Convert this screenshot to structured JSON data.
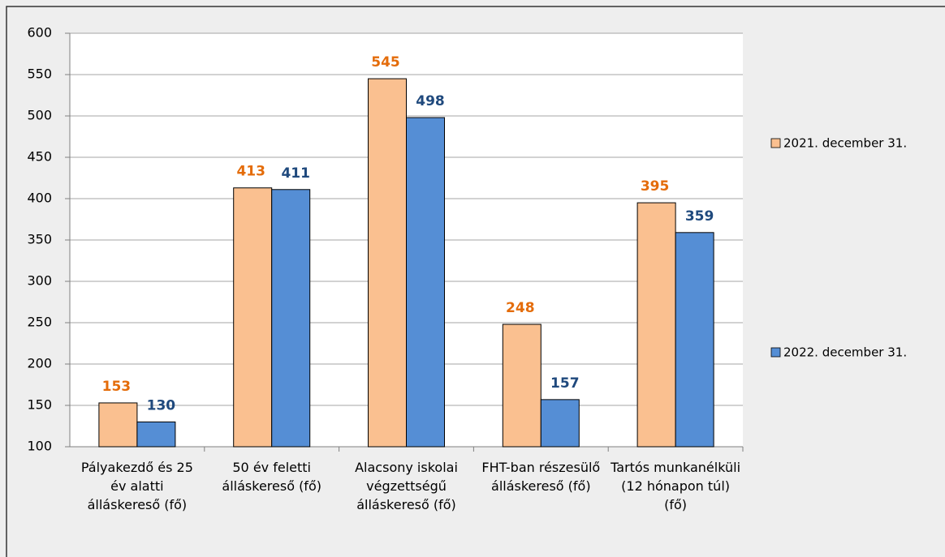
{
  "chart_data": {
    "type": "bar",
    "categories": [
      "Pályakezdő és 25 év alatti álláskereső (fő)",
      "50 év feletti álláskereső (fő)",
      "Alacsony iskolai végzettségű álláskereső (fő)",
      "FHT-ban részesülő álláskereső (fő)",
      "Tartós munkanélküli (12 hónapon túl) (fő)"
    ],
    "series": [
      {
        "name": "2021. december 31.",
        "color": "#fac090",
        "label_color": "#e46c0a",
        "values": [
          153,
          413,
          545,
          248,
          395
        ]
      },
      {
        "name": "2022. december 31.",
        "color": "#558ed5",
        "label_color": "#1f497d",
        "values": [
          130,
          411,
          498,
          157,
          359
        ]
      }
    ],
    "ylim": [
      100,
      600
    ],
    "yticks": [
      100,
      150,
      200,
      250,
      300,
      350,
      400,
      450,
      500,
      550,
      600
    ],
    "grid": true,
    "legend": "right"
  }
}
